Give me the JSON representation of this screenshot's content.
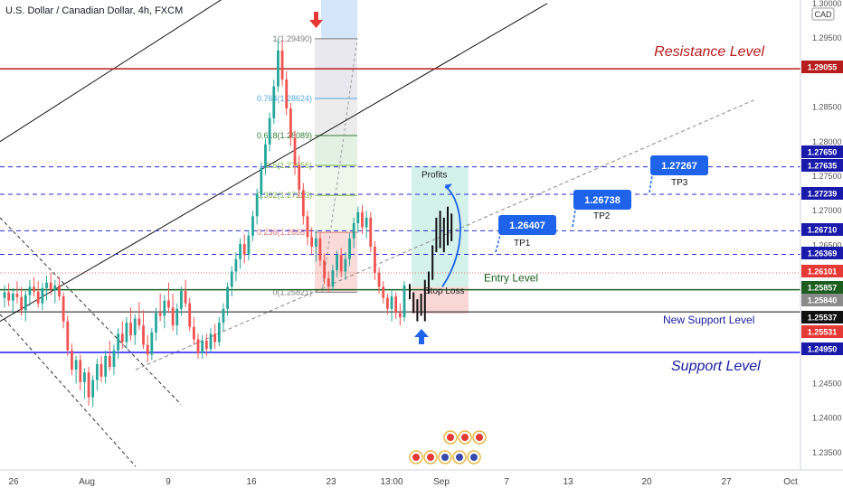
{
  "header": {
    "symbol_title": "U.S. Dollar / Canadian Dollar, 4h, FXCM",
    "currency": "CAD"
  },
  "colors": {
    "bull": "#26a69a",
    "bear": "#ef5350",
    "resistance": "#b71c1c",
    "support": "#1a1aff",
    "entry": "#1b5e20",
    "tp_badge": "#1e63e9",
    "dashed_level": "#2b2bd4"
  },
  "chart_data": {
    "type": "candlestick",
    "title": "U.S. Dollar / Canadian Dollar, 4h, FXCM",
    "y_axis": {
      "ylim": [
        1.2325,
        1.3005
      ],
      "tick_labels": [
        "1.30000",
        "1.29500",
        "1.29055",
        "1.28500",
        "1.28000",
        "1.27650",
        "1.27635",
        "1.27500",
        "1.27239",
        "1.27000",
        "1.26710",
        "1.26500",
        "1.26369",
        "1.26101",
        "1.25857",
        "1.25840",
        "1.25537",
        "1.25531",
        "1.24950",
        "1.24500",
        "1.24000",
        "1.23500"
      ],
      "ticks": [
        1.3,
        1.295,
        1.285,
        1.28,
        1.275,
        1.27,
        1.265,
        1.245,
        1.24,
        1.235
      ]
    },
    "x_axis": {
      "tick_labels": [
        "26",
        "Aug",
        "9",
        "16",
        "23",
        "13:00",
        "Sep",
        "7",
        "13",
        "20",
        "27",
        "Oct"
      ]
    },
    "price_badges": [
      {
        "value": "1.29055",
        "style": "resistance"
      },
      {
        "value": "1.27650",
        "style": "blue"
      },
      {
        "value": "1.27635",
        "style": "blue"
      },
      {
        "value": "1.27239",
        "style": "blue"
      },
      {
        "value": "1.26710",
        "style": "blue"
      },
      {
        "value": "1.26369",
        "style": "blue"
      },
      {
        "value": "1.26101",
        "style": "red"
      },
      {
        "value": "1.25857",
        "style": "green"
      },
      {
        "value": "1.25840",
        "style": "gray"
      },
      {
        "value": "1.25537",
        "style": "black"
      },
      {
        "value": "1.25531",
        "style": "red"
      },
      {
        "value": "1.24950",
        "style": "blue"
      }
    ],
    "horizontal_levels": [
      {
        "price": 1.29055,
        "label": "Resistance Level",
        "style": "solid-red"
      },
      {
        "price": 1.27635,
        "label": "",
        "style": "dashed-blue"
      },
      {
        "price": 1.27239,
        "label": "",
        "style": "dashed-blue"
      },
      {
        "price": 1.2671,
        "label": "",
        "style": "dashed-blue"
      },
      {
        "price": 1.26369,
        "label": "",
        "style": "dashed-blue"
      },
      {
        "price": 1.26101,
        "label": "",
        "style": "dotted-red"
      },
      {
        "price": 1.25857,
        "label": "Entry Level",
        "style": "solid-green"
      },
      {
        "price": 1.25537,
        "label": "New Support Level",
        "style": "solid-black"
      },
      {
        "price": 1.2495,
        "label": "Support Level",
        "style": "solid-blue"
      }
    ],
    "fibonacci": [
      {
        "label": "1(1.29490)",
        "price": 1.2949
      },
      {
        "label": "0.764(1.28624)",
        "price": 1.28624
      },
      {
        "label": "0.618(1.28089)",
        "price": 1.28089
      },
      {
        "label": "0.5(1.27656)",
        "price": 1.27656
      },
      {
        "label": "0.382(1.27223)",
        "price": 1.27223
      },
      {
        "label": "0.236(1.26687)",
        "price": 1.26687
      },
      {
        "label": "0(1.25821)",
        "price": 1.25821
      }
    ],
    "targets": [
      {
        "label": "TP1",
        "value": "1.26407"
      },
      {
        "label": "TP2",
        "value": "1.26738"
      },
      {
        "label": "TP3",
        "value": "1.27267"
      }
    ],
    "position_box": {
      "profits_label": "Profits",
      "stop_label": "Stop Loss"
    },
    "candles": [
      [
        1.2574,
        1.2592,
        1.256,
        1.2582
      ],
      [
        1.2582,
        1.2595,
        1.2562,
        1.257
      ],
      [
        1.257,
        1.2588,
        1.2552,
        1.258
      ],
      [
        1.258,
        1.2598,
        1.2566,
        1.2575
      ],
      [
        1.2575,
        1.259,
        1.2548,
        1.2556
      ],
      [
        1.2556,
        1.2584,
        1.254,
        1.2578
      ],
      [
        1.2578,
        1.26,
        1.2562,
        1.259
      ],
      [
        1.259,
        1.2604,
        1.2576,
        1.2583
      ],
      [
        1.2583,
        1.2598,
        1.256,
        1.2566
      ],
      [
        1.2566,
        1.2596,
        1.2556,
        1.2588
      ],
      [
        1.2588,
        1.2606,
        1.257,
        1.2596
      ],
      [
        1.2596,
        1.261,
        1.2578,
        1.2586
      ],
      [
        1.2586,
        1.26,
        1.2566,
        1.2592
      ],
      [
        1.2592,
        1.2604,
        1.257,
        1.2576
      ],
      [
        1.2576,
        1.2582,
        1.253,
        1.254
      ],
      [
        1.254,
        1.2548,
        1.249,
        1.2498
      ],
      [
        1.2498,
        1.2508,
        1.2462,
        1.247
      ],
      [
        1.247,
        1.249,
        1.245,
        1.2484
      ],
      [
        1.2484,
        1.2492,
        1.244,
        1.2452
      ],
      [
        1.2452,
        1.2472,
        1.2428,
        1.2466
      ],
      [
        1.2466,
        1.2474,
        1.2418,
        1.243
      ],
      [
        1.243,
        1.2462,
        1.2416,
        1.2455
      ],
      [
        1.2455,
        1.2486,
        1.244,
        1.2478
      ],
      [
        1.2478,
        1.249,
        1.2452,
        1.246
      ],
      [
        1.246,
        1.2498,
        1.245,
        1.249
      ],
      [
        1.249,
        1.2512,
        1.2468,
        1.2474
      ],
      [
        1.2474,
        1.2506,
        1.2462,
        1.2498
      ],
      [
        1.2498,
        1.253,
        1.2486,
        1.2522
      ],
      [
        1.2522,
        1.254,
        1.25,
        1.251
      ],
      [
        1.251,
        1.2546,
        1.25,
        1.2538
      ],
      [
        1.2538,
        1.256,
        1.2512,
        1.252
      ],
      [
        1.252,
        1.255,
        1.2506,
        1.2544
      ],
      [
        1.2544,
        1.2568,
        1.2528,
        1.2534
      ],
      [
        1.2534,
        1.2556,
        1.25,
        1.2506
      ],
      [
        1.2506,
        1.252,
        1.248,
        1.2492
      ],
      [
        1.2492,
        1.253,
        1.2484,
        1.2524
      ],
      [
        1.2524,
        1.256,
        1.2512,
        1.2552
      ],
      [
        1.2552,
        1.258,
        1.254,
        1.2548
      ],
      [
        1.2548,
        1.2578,
        1.253,
        1.257
      ],
      [
        1.257,
        1.2596,
        1.2552,
        1.256
      ],
      [
        1.256,
        1.258,
        1.2526,
        1.2534
      ],
      [
        1.2534,
        1.2566,
        1.252,
        1.2558
      ],
      [
        1.2558,
        1.259,
        1.2548,
        1.2584
      ],
      [
        1.2584,
        1.26,
        1.256,
        1.2566
      ],
      [
        1.2566,
        1.2574,
        1.2526,
        1.2532
      ],
      [
        1.2532,
        1.2546,
        1.2506,
        1.2514
      ],
      [
        1.2514,
        1.2522,
        1.2486,
        1.2494
      ],
      [
        1.2494,
        1.252,
        1.2486,
        1.2512
      ],
      [
        1.2512,
        1.2522,
        1.249,
        1.25
      ],
      [
        1.25,
        1.253,
        1.2494,
        1.2522
      ],
      [
        1.2522,
        1.2536,
        1.25,
        1.251
      ],
      [
        1.251,
        1.2546,
        1.2504,
        1.2538
      ],
      [
        1.2538,
        1.2566,
        1.2526,
        1.2558
      ],
      [
        1.2558,
        1.2596,
        1.2548,
        1.259
      ],
      [
        1.259,
        1.262,
        1.2576,
        1.2612
      ],
      [
        1.2612,
        1.264,
        1.2598,
        1.263
      ],
      [
        1.263,
        1.266,
        1.2616,
        1.2652
      ],
      [
        1.2652,
        1.2666,
        1.2624,
        1.2636
      ],
      [
        1.2636,
        1.2672,
        1.2628,
        1.2664
      ],
      [
        1.2664,
        1.27,
        1.2656,
        1.2692
      ],
      [
        1.2692,
        1.2732,
        1.268,
        1.2724
      ],
      [
        1.2724,
        1.277,
        1.2716,
        1.2762
      ],
      [
        1.2762,
        1.2804,
        1.2752,
        1.2796
      ],
      [
        1.2796,
        1.2842,
        1.2786,
        1.2834
      ],
      [
        1.2834,
        1.289,
        1.2826,
        1.288
      ],
      [
        1.288,
        1.2949,
        1.2872,
        1.2932
      ],
      [
        1.2932,
        1.2946,
        1.288,
        1.289
      ],
      [
        1.289,
        1.2902,
        1.2838,
        1.2848
      ],
      [
        1.2848,
        1.2856,
        1.2794,
        1.2806
      ],
      [
        1.2806,
        1.2816,
        1.2752,
        1.2766
      ],
      [
        1.2766,
        1.278,
        1.2718,
        1.273
      ],
      [
        1.273,
        1.274,
        1.268,
        1.2692
      ],
      [
        1.2692,
        1.27,
        1.265,
        1.2662
      ],
      [
        1.2662,
        1.2676,
        1.2636,
        1.2648
      ],
      [
        1.2648,
        1.2672,
        1.2626,
        1.266
      ],
      [
        1.266,
        1.2668,
        1.262,
        1.2628
      ],
      [
        1.2628,
        1.2638,
        1.2594,
        1.2602
      ],
      [
        1.2602,
        1.2612,
        1.2582,
        1.259
      ],
      [
        1.259,
        1.2622,
        1.2584,
        1.2614
      ],
      [
        1.2614,
        1.2642,
        1.2604,
        1.2636
      ],
      [
        1.2636,
        1.2646,
        1.2604,
        1.2612
      ],
      [
        1.2612,
        1.264,
        1.26,
        1.263
      ],
      [
        1.263,
        1.2668,
        1.262,
        1.266
      ],
      [
        1.266,
        1.269,
        1.2646,
        1.2682
      ],
      [
        1.2682,
        1.2706,
        1.2668,
        1.2698
      ],
      [
        1.2698,
        1.2708,
        1.2666,
        1.2676
      ],
      [
        1.2676,
        1.27,
        1.266,
        1.269
      ],
      [
        1.269,
        1.2698,
        1.264,
        1.2648
      ],
      [
        1.2648,
        1.2656,
        1.26,
        1.261
      ],
      [
        1.261,
        1.2618,
        1.258,
        1.259
      ],
      [
        1.259,
        1.2598,
        1.2566,
        1.2574
      ],
      [
        1.2574,
        1.258,
        1.255,
        1.2558
      ],
      [
        1.2558,
        1.2586,
        1.254,
        1.2576
      ],
      [
        1.2576,
        1.2582,
        1.2544,
        1.2552
      ],
      [
        1.2552,
        1.2566,
        1.2534,
        1.2546
      ],
      [
        1.2546,
        1.2598,
        1.254,
        1.2592
      ]
    ],
    "projection_path": [
      [
        1.2594,
        1.2646
      ],
      [
        1.2646,
        1.2614
      ],
      [
        1.2614,
        1.2696
      ],
      [
        1.2696,
        1.265
      ],
      [
        1.265,
        1.2706
      ]
    ]
  }
}
